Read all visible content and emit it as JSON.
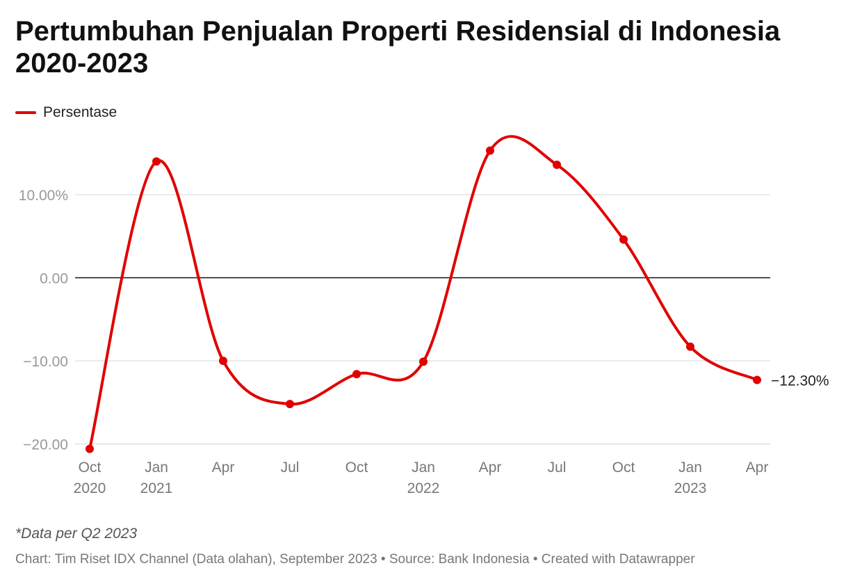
{
  "title": "Pertumbuhan Penjualan Properti Residensial di Indonesia 2020-2023",
  "legend": {
    "label": "Persentase",
    "color": "#e00000"
  },
  "note": "*Data per Q2 2023",
  "footer": "Chart: Tim Riset IDX Channel (Data olahan), September 2023 • Source: Bank Indonesia • Created with Datawrapper",
  "chart_data": {
    "type": "line",
    "title": "Pertumbuhan Penjualan Properti Residensial di Indonesia 2020-2023",
    "xlabel": "",
    "ylabel": "",
    "ylim": [
      -20,
      10
    ],
    "yticks": [
      {
        "value": 10,
        "label": "10.00%"
      },
      {
        "value": 0,
        "label": "0.00"
      },
      {
        "value": -10,
        "label": "−10.00"
      },
      {
        "value": -20,
        "label": "−20.00"
      }
    ],
    "grid": true,
    "legend_position": "top-left",
    "categories": [
      "Oct 2020",
      "Jan 2021",
      "Apr 2021",
      "Jul 2021",
      "Oct 2021",
      "Jan 2022",
      "Apr 2022",
      "Jul 2022",
      "Oct 2022",
      "Jan 2023",
      "Apr 2023"
    ],
    "x_tick_labels": [
      {
        "line1": "Oct",
        "line2": "2020"
      },
      {
        "line1": "Jan",
        "line2": "2021"
      },
      {
        "line1": "Apr",
        "line2": ""
      },
      {
        "line1": "Jul",
        "line2": ""
      },
      {
        "line1": "Oct",
        "line2": ""
      },
      {
        "line1": "Jan",
        "line2": "2022"
      },
      {
        "line1": "Apr",
        "line2": ""
      },
      {
        "line1": "Jul",
        "line2": ""
      },
      {
        "line1": "Oct",
        "line2": ""
      },
      {
        "line1": "Jan",
        "line2": "2023"
      },
      {
        "line1": "Apr",
        "line2": ""
      }
    ],
    "series": [
      {
        "name": "Persentase",
        "color": "#e00000",
        "values": [
          -20.6,
          14.0,
          -10.0,
          -15.2,
          -11.6,
          -10.1,
          15.3,
          13.6,
          4.6,
          -8.3,
          -12.3
        ]
      }
    ],
    "end_label": "−12.30%"
  }
}
